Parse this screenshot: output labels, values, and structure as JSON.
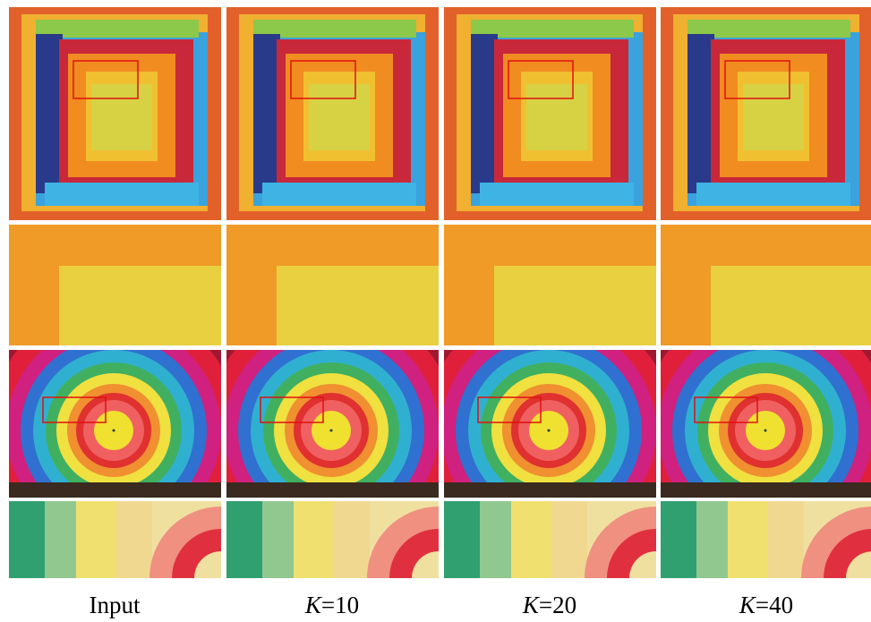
{
  "figure": {
    "columns": [
      {
        "label": "Input"
      },
      {
        "label_var": "K",
        "label": "=10"
      },
      {
        "label_var": "K",
        "label": "=20"
      },
      {
        "label_var": "K",
        "label": "=40"
      }
    ]
  }
}
